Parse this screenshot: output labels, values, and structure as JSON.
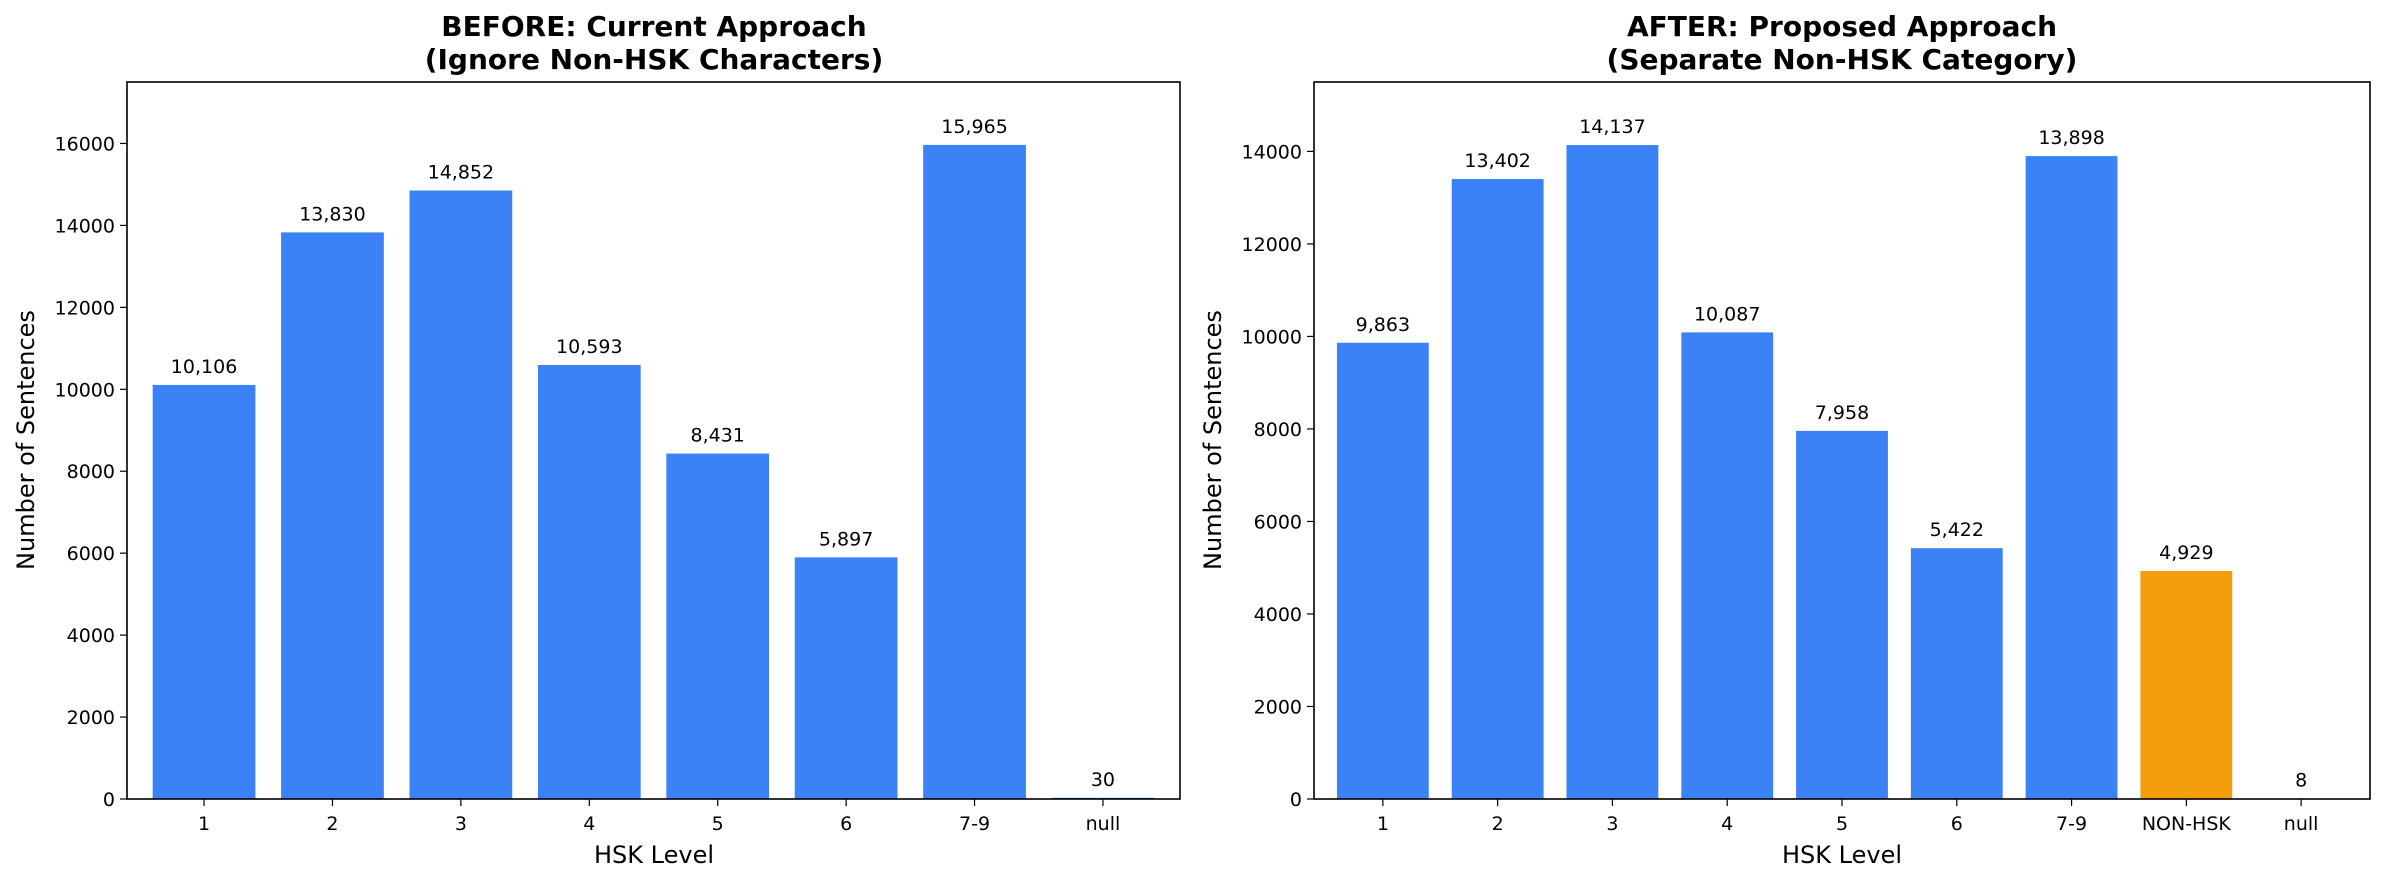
{
  "chart_data": [
    {
      "type": "bar",
      "title": "BEFORE: Current Approach",
      "subtitle": "(Ignore Non-HSK Characters)",
      "xlabel": "HSK Level",
      "ylabel": "Number of Sentences",
      "categories": [
        "1",
        "2",
        "3",
        "4",
        "5",
        "6",
        "7-9",
        "null"
      ],
      "values": [
        10106,
        13830,
        14852,
        10593,
        8431,
        5897,
        15965,
        30
      ],
      "data_labels": [
        "10,106",
        "13,830",
        "14,852",
        "10,593",
        "8,431",
        "5,897",
        "15,965",
        "30"
      ],
      "bar_colors": [
        "#3b82f6",
        "#3b82f6",
        "#3b82f6",
        "#3b82f6",
        "#3b82f6",
        "#3b82f6",
        "#3b82f6",
        "#3b82f6"
      ],
      "ylim": [
        0,
        17500
      ],
      "yticks": [
        0,
        2000,
        4000,
        6000,
        8000,
        10000,
        12000,
        14000,
        16000
      ],
      "grid": false
    },
    {
      "type": "bar",
      "title": "AFTER: Proposed Approach",
      "subtitle": "(Separate Non-HSK Category)",
      "xlabel": "HSK Level",
      "ylabel": "Number of Sentences",
      "categories": [
        "1",
        "2",
        "3",
        "4",
        "5",
        "6",
        "7-9",
        "NON-HSK",
        "null"
      ],
      "values": [
        9863,
        13402,
        14137,
        10087,
        7958,
        5422,
        13898,
        4929,
        8
      ],
      "data_labels": [
        "9,863",
        "13,402",
        "14,137",
        "10,087",
        "7,958",
        "5,422",
        "13,898",
        "4,929",
        "8"
      ],
      "bar_colors": [
        "#3b82f6",
        "#3b82f6",
        "#3b82f6",
        "#3b82f6",
        "#3b82f6",
        "#3b82f6",
        "#3b82f6",
        "#f59e0b",
        "#3b82f6"
      ],
      "ylim": [
        0,
        15500
      ],
      "yticks": [
        0,
        2000,
        4000,
        6000,
        8000,
        10000,
        12000,
        14000
      ],
      "grid": false
    }
  ]
}
